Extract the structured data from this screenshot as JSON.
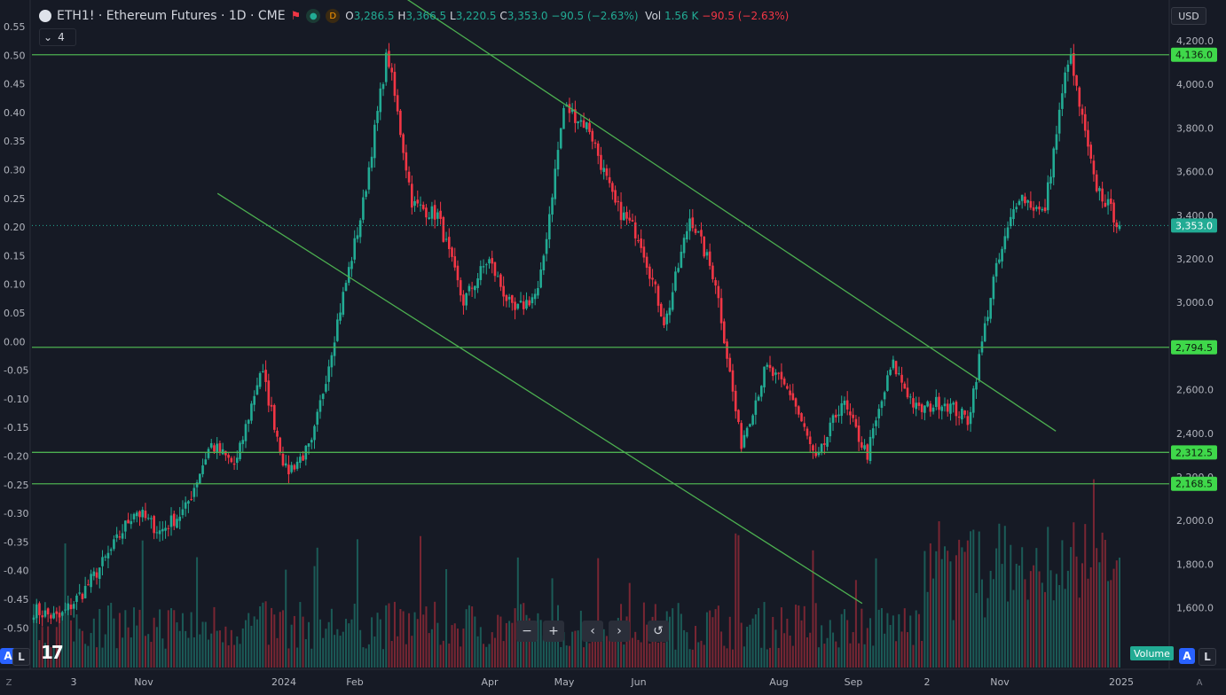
{
  "header": {
    "symbol_title": "ETH1! · Ethereum Futures · 1D · CME",
    "flag_icon": "flag-icon",
    "badge_d": "D",
    "ohlc": {
      "o_label": "O",
      "o": "3,286.5",
      "h_label": "H",
      "h": "3,366.5",
      "l_label": "L",
      "l": "3,220.5",
      "c_label": "C",
      "c": "3,353.0",
      "change": "−90.5 (−2.63%)",
      "vol_label": "Vol",
      "vol": "1.56 K",
      "vol_change": "−90.5 (−2.63%)"
    },
    "indicators_count": "4",
    "currency": "USD"
  },
  "colors": {
    "background": "#161a25",
    "up": "#22ab94",
    "down": "#f23645",
    "line": "#4caf50",
    "label_green": "#3fd84a",
    "last_price": "#22ab94"
  },
  "chart_data": {
    "type": "candlestick",
    "symbol": "ETH1!",
    "interval": "1D",
    "price_axis": {
      "ylim": [
        1450,
        4300
      ],
      "ticks": [
        "4,200.0",
        "4,000.0",
        "3,800.0",
        "3,600.0",
        "3,400.0",
        "3,200.0",
        "3,000.0",
        "2,800.0",
        "2,600.0",
        "2,400.0",
        "2,200.0",
        "2,000.0",
        "1,800.0",
        "1,600.0"
      ]
    },
    "left_axis": {
      "ticks": [
        "0.55",
        "0.50",
        "0.45",
        "0.40",
        "0.35",
        "0.30",
        "0.25",
        "0.20",
        "0.15",
        "0.10",
        "0.05",
        "0.00",
        "-0.05",
        "-0.10",
        "-0.15",
        "-0.20",
        "-0.25",
        "-0.30",
        "-0.35",
        "-0.40",
        "-0.45",
        "-0.50"
      ]
    },
    "time_axis": {
      "labels": [
        "3",
        "Nov",
        "2024",
        "Feb",
        "Apr",
        "May",
        "Jun",
        "Aug",
        "Sep",
        "2",
        "Nov",
        "2025"
      ]
    },
    "price_anchors": [
      1590,
      1550,
      1680,
      1850,
      2050,
      1950,
      2050,
      2350,
      2250,
      2700,
      2220,
      2340,
      2900,
      3420,
      4150,
      3450,
      3400,
      3000,
      3200,
      2950,
      3050,
      3900,
      3800,
      3450,
      3300,
      2900,
      3400,
      3100,
      2350,
      2700,
      2580,
      2260,
      2550,
      2300,
      2720,
      2500,
      2550,
      2460,
      3100,
      3500,
      3400,
      4150,
      3550,
      3353
    ],
    "horizontal_levels": [
      {
        "price": 4136.0,
        "label": "4,136.0"
      },
      {
        "price": 2794.5,
        "label": "2,794.5"
      },
      {
        "price": 2312.5,
        "label": "2,312.5"
      },
      {
        "price": 2168.5,
        "label": "2,168.5"
      }
    ],
    "last_price": {
      "price": 3353.0,
      "label": "3,353.0"
    },
    "trendlines": [
      {
        "from": {
          "date": "2023-12-14",
          "price": 3500
        },
        "to": {
          "date": "2024-09-02",
          "price": 1620
        }
      },
      {
        "from": {
          "date": "2024-02-12",
          "price": 4520
        },
        "to": {
          "date": "2024-11-20",
          "price": 2410
        }
      }
    ],
    "volume_pane": {
      "label": "Volume"
    }
  },
  "navbar": {
    "zoom_out": "−",
    "zoom_in": "+",
    "scroll_left": "‹",
    "scroll_right": "›",
    "reset": "↺"
  },
  "scale_buttons": {
    "auto": "A",
    "log": "L"
  },
  "volume_label": "Volume",
  "corner_left": "Z",
  "corner_right": "A"
}
